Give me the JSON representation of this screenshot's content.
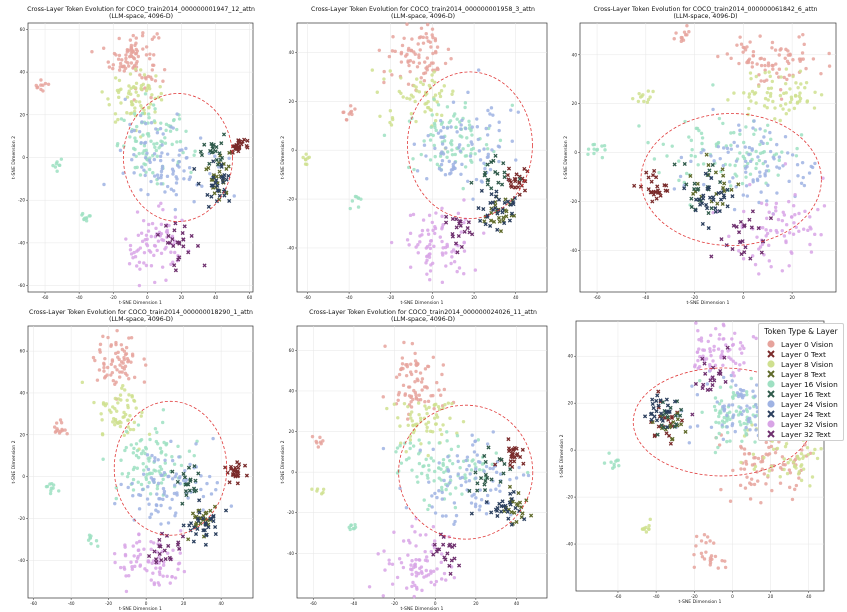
{
  "colors": {
    "layer0_vision": "#e6a39c",
    "layer0_text": "#7a2b2b",
    "layer8_vision": "#cfe08f",
    "layer8_text": "#5f6a2a",
    "layer16_vision": "#9ee0c2",
    "layer16_text": "#2f5a4a",
    "layer24_vision": "#9fb3e3",
    "layer24_text": "#2b3f5e",
    "layer32_vision": "#d8a4e6",
    "layer32_text": "#6e2f6e",
    "ellipse": "#e03a3a"
  },
  "legend": {
    "title": "Token Type & Layer",
    "entries": [
      {
        "label": "Layer 0 Vision",
        "marker": "circle",
        "color": "#e6a39c"
      },
      {
        "label": "Layer 0 Text",
        "marker": "x",
        "color": "#7a2b2b"
      },
      {
        "label": "Layer 8 Vision",
        "marker": "circle",
        "color": "#cfe08f"
      },
      {
        "label": "Layer 8 Text",
        "marker": "x",
        "color": "#5f6a2a"
      },
      {
        "label": "Layer 16 Vision",
        "marker": "circle",
        "color": "#9ee0c2"
      },
      {
        "label": "Layer 16 Text",
        "marker": "x",
        "color": "#2f5a4a"
      },
      {
        "label": "Layer 24 Vision",
        "marker": "circle",
        "color": "#9fb3e3"
      },
      {
        "label": "Layer 24 Text",
        "marker": "x",
        "color": "#2b3f5e"
      },
      {
        "label": "Layer 32 Vision",
        "marker": "circle",
        "color": "#d8a4e6"
      },
      {
        "label": "Layer 32 Text",
        "marker": "x",
        "color": "#6e2f6e"
      }
    ]
  },
  "chart_data": [
    {
      "type": "scatter",
      "title": "Cross-Layer Token Evolution for COCO_train2014_000000001947_12_attn",
      "subtitle": "(LLM-space, 4096-D)",
      "xlabel": "t-SNE Dimension 1",
      "ylabel": "t-SNE Dimension 2",
      "xlim": [
        -70,
        62
      ],
      "ylim": [
        -63,
        63
      ],
      "xticks": [
        -60,
        -40,
        -20,
        0,
        20,
        40,
        60
      ],
      "yticks": [
        -60,
        -40,
        -20,
        0,
        20,
        40,
        60
      ],
      "grid": true,
      "ellipse": {
        "cx": 18,
        "cy": 0,
        "rx": 32,
        "ry": 30
      },
      "clusters": [
        {
          "layer": "layer0_vision",
          "cx": -8,
          "cy": 47,
          "sx": 7,
          "sy": 7,
          "n": 90
        },
        {
          "layer": "layer0_vision",
          "cx": -62,
          "cy": 34,
          "sx": 2,
          "sy": 1.5,
          "n": 10
        },
        {
          "layer": "layer0_text",
          "cx": 52,
          "cy": 5,
          "sx": 2.5,
          "sy": 2.5,
          "n": 25
        },
        {
          "layer": "layer8_vision",
          "cx": -8,
          "cy": 28,
          "sx": 9,
          "sy": 6,
          "n": 70
        },
        {
          "layer": "layer8_text",
          "cx": 43,
          "cy": -8,
          "sx": 4,
          "sy": 6,
          "n": 25
        },
        {
          "layer": "layer16_vision",
          "cx": 5,
          "cy": 6,
          "sx": 11,
          "sy": 8,
          "n": 90
        },
        {
          "layer": "layer16_vision",
          "cx": -53,
          "cy": -4,
          "sx": 1.5,
          "sy": 1.5,
          "n": 8
        },
        {
          "layer": "layer16_vision",
          "cx": -35,
          "cy": -28,
          "sx": 2,
          "sy": 1.5,
          "n": 10
        },
        {
          "layer": "layer16_text",
          "cx": 38,
          "cy": 4,
          "sx": 4,
          "sy": 5,
          "n": 20
        },
        {
          "layer": "layer24_vision",
          "cx": 12,
          "cy": 0,
          "sx": 13,
          "sy": 10,
          "n": 90
        },
        {
          "layer": "layer24_text",
          "cx": 42,
          "cy": -12,
          "sx": 5,
          "sy": 5,
          "n": 30
        },
        {
          "layer": "layer32_vision",
          "cx": 5,
          "cy": -42,
          "sx": 9,
          "sy": 8,
          "n": 80
        },
        {
          "layer": "layer32_text",
          "cx": 16,
          "cy": -38,
          "sx": 6,
          "sy": 6,
          "n": 25
        }
      ]
    },
    {
      "type": "scatter",
      "title": "Cross-Layer Token Evolution for COCO_train2014_000000001958_3_attn",
      "subtitle": "(LLM-space, 4096-D)",
      "xlabel": "t-SNE Dimension 1",
      "ylabel": "t-SNE Dimension 2",
      "xlim": [
        -65,
        55
      ],
      "ylim": [
        -58,
        52
      ],
      "xticks": [
        -60,
        -40,
        -20,
        0,
        20,
        40
      ],
      "yticks": [
        -40,
        -20,
        0,
        20,
        40
      ],
      "grid": true,
      "ellipse": {
        "cx": 18,
        "cy": 2,
        "rx": 30,
        "ry": 30
      },
      "clusters": [
        {
          "layer": "layer0_vision",
          "cx": -6,
          "cy": 39,
          "sx": 8,
          "sy": 6,
          "n": 80
        },
        {
          "layer": "layer0_vision",
          "cx": -41,
          "cy": 15,
          "sx": 2,
          "sy": 2,
          "n": 10
        },
        {
          "layer": "layer0_text",
          "cx": 41,
          "cy": -13,
          "sx": 3,
          "sy": 2.5,
          "n": 25
        },
        {
          "layer": "layer8_vision",
          "cx": -5,
          "cy": 22,
          "sx": 9,
          "sy": 6,
          "n": 60
        },
        {
          "layer": "layer8_vision",
          "cx": -61,
          "cy": -3,
          "sx": 1.5,
          "sy": 1.5,
          "n": 8
        },
        {
          "layer": "layer8_text",
          "cx": 32,
          "cy": -26,
          "sx": 4,
          "sy": 4,
          "n": 25
        },
        {
          "layer": "layer16_vision",
          "cx": 8,
          "cy": 5,
          "sx": 10,
          "sy": 8,
          "n": 90
        },
        {
          "layer": "layer16_vision",
          "cx": -37,
          "cy": -22,
          "sx": 2,
          "sy": 1.5,
          "n": 8
        },
        {
          "layer": "layer16_text",
          "cx": 30,
          "cy": -10,
          "sx": 4,
          "sy": 5,
          "n": 20
        },
        {
          "layer": "layer24_vision",
          "cx": 15,
          "cy": 0,
          "sx": 12,
          "sy": 10,
          "n": 90
        },
        {
          "layer": "layer24_text",
          "cx": 30,
          "cy": -24,
          "sx": 5,
          "sy": 5,
          "n": 30
        },
        {
          "layer": "layer32_vision",
          "cx": 3,
          "cy": -38,
          "sx": 9,
          "sy": 7,
          "n": 80
        },
        {
          "layer": "layer32_text",
          "cx": 13,
          "cy": -33,
          "sx": 4,
          "sy": 4,
          "n": 20
        }
      ]
    },
    {
      "type": "scatter",
      "title": "Cross-Layer Token Evolution for COCO_train2014_000000061842_6_attn",
      "subtitle": "(LLM-space, 4096-D)",
      "xlabel": "t-SNE Dimension 1",
      "ylabel": "t-SNE Dimension 2",
      "xlim": [
        -67,
        38
      ],
      "ylim": [
        -57,
        53
      ],
      "xticks": [
        -60,
        -40,
        -20,
        0,
        20
      ],
      "yticks": [
        -40,
        -20,
        0,
        20,
        40
      ],
      "grid": true,
      "ellipse": {
        "cx": -5,
        "cy": -11,
        "rx": 37,
        "ry": 27
      },
      "clusters": [
        {
          "layer": "layer0_vision",
          "cx": -25,
          "cy": 48,
          "sx": 2,
          "sy": 2,
          "n": 12
        },
        {
          "layer": "layer0_vision",
          "cx": 13,
          "cy": 38,
          "sx": 10,
          "sy": 5,
          "n": 80
        },
        {
          "layer": "layer0_text",
          "cx": -36,
          "cy": -14,
          "sx": 3,
          "sy": 3,
          "n": 25
        },
        {
          "layer": "layer8_vision",
          "cx": -40,
          "cy": 22,
          "sx": 2,
          "sy": 1.5,
          "n": 12
        },
        {
          "layer": "layer8_vision",
          "cx": 15,
          "cy": 24,
          "sx": 10,
          "sy": 5,
          "n": 70
        },
        {
          "layer": "layer8_text",
          "cx": -14,
          "cy": -14,
          "sx": 5,
          "sy": 4,
          "n": 20
        },
        {
          "layer": "layer16_vision",
          "cx": -60,
          "cy": 1,
          "sx": 2.5,
          "sy": 1.5,
          "n": 12
        },
        {
          "layer": "layer16_vision",
          "cx": -5,
          "cy": 0,
          "sx": 14,
          "sy": 8,
          "n": 90
        },
        {
          "layer": "layer16_text",
          "cx": -18,
          "cy": -15,
          "sx": 4,
          "sy": 5,
          "n": 20
        },
        {
          "layer": "layer24_vision",
          "cx": 5,
          "cy": -5,
          "sx": 14,
          "sy": 9,
          "n": 90
        },
        {
          "layer": "layer24_text",
          "cx": -13,
          "cy": -20,
          "sx": 5,
          "sy": 6,
          "n": 30
        },
        {
          "layer": "layer32_vision",
          "cx": 15,
          "cy": -30,
          "sx": 10,
          "sy": 8,
          "n": 80
        },
        {
          "layer": "layer32_text",
          "cx": 0,
          "cy": -33,
          "sx": 6,
          "sy": 5,
          "n": 25
        }
      ]
    },
    {
      "type": "scatter",
      "title": "Cross-Layer Token Evolution for COCO_train2014_000000018290_1_attn",
      "subtitle": "(LLM-space, 4096-D)",
      "xlabel": "t-SNE Dimension 1",
      "ylabel": "t-SNE Dimension 2",
      "xlim": [
        -63,
        57
      ],
      "ylim": [
        -58,
        72
      ],
      "xticks": [
        -60,
        -40,
        -20,
        0,
        20,
        40
      ],
      "yticks": [
        -40,
        -20,
        0,
        20,
        40,
        60
      ],
      "grid": true,
      "ellipse": {
        "cx": 13,
        "cy": 4,
        "rx": 30,
        "ry": 32
      },
      "clusters": [
        {
          "layer": "layer0_vision",
          "cx": -15,
          "cy": 55,
          "sx": 6,
          "sy": 7,
          "n": 70
        },
        {
          "layer": "layer0_vision",
          "cx": -45,
          "cy": 22,
          "sx": 2,
          "sy": 3,
          "n": 14
        },
        {
          "layer": "layer0_text",
          "cx": 48,
          "cy": 2,
          "sx": 2.5,
          "sy": 2.5,
          "n": 25
        },
        {
          "layer": "layer8_vision",
          "cx": -14,
          "cy": 30,
          "sx": 7,
          "sy": 7,
          "n": 60
        },
        {
          "layer": "layer8_text",
          "cx": 30,
          "cy": -18,
          "sx": 4,
          "sy": 5,
          "n": 25
        },
        {
          "layer": "layer16_vision",
          "cx": -50,
          "cy": -5,
          "sx": 2,
          "sy": 2,
          "n": 10
        },
        {
          "layer": "layer16_vision",
          "cx": -30,
          "cy": -30,
          "sx": 2,
          "sy": 1.5,
          "n": 8
        },
        {
          "layer": "layer16_vision",
          "cx": 3,
          "cy": 8,
          "sx": 11,
          "sy": 9,
          "n": 90
        },
        {
          "layer": "layer16_text",
          "cx": 22,
          "cy": -5,
          "sx": 4,
          "sy": 5,
          "n": 20
        },
        {
          "layer": "layer24_vision",
          "cx": 12,
          "cy": -3,
          "sx": 13,
          "sy": 10,
          "n": 90
        },
        {
          "layer": "layer24_text",
          "cx": 30,
          "cy": -23,
          "sx": 5,
          "sy": 5,
          "n": 30
        },
        {
          "layer": "layer32_vision",
          "cx": 0,
          "cy": -42,
          "sx": 9,
          "sy": 7,
          "n": 80
        },
        {
          "layer": "layer32_text",
          "cx": 10,
          "cy": -36,
          "sx": 5,
          "sy": 4,
          "n": 20
        }
      ]
    },
    {
      "type": "scatter",
      "title": "Cross-Layer Token Evolution for COCO_train2014_000000024026_11_attn",
      "subtitle": "(LLM-space, 4096-D)",
      "xlabel": "t-SNE Dimension 1",
      "ylabel": "t-SNE Dimension 2",
      "xlim": [
        -68,
        55
      ],
      "ylim": [
        -62,
        72
      ],
      "xticks": [
        -60,
        -40,
        -20,
        0,
        20,
        40
      ],
      "yticks": [
        -40,
        -20,
        0,
        20,
        40,
        60
      ],
      "grid": true,
      "ellipse": {
        "cx": 15,
        "cy": 0,
        "rx": 33,
        "ry": 33
      },
      "clusters": [
        {
          "layer": "layer0_vision",
          "cx": -10,
          "cy": 45,
          "sx": 7,
          "sy": 9,
          "n": 80
        },
        {
          "layer": "layer0_vision",
          "cx": -57,
          "cy": 14,
          "sx": 1.5,
          "sy": 1.5,
          "n": 8
        },
        {
          "layer": "layer0_text",
          "cx": 38,
          "cy": 9,
          "sx": 3,
          "sy": 3,
          "n": 25
        },
        {
          "layer": "layer8_vision",
          "cx": -5,
          "cy": 25,
          "sx": 7,
          "sy": 6,
          "n": 60
        },
        {
          "layer": "layer8_vision",
          "cx": -58,
          "cy": -8,
          "sx": 1.5,
          "sy": 1.5,
          "n": 6
        },
        {
          "layer": "layer8_text",
          "cx": 38,
          "cy": -17,
          "sx": 3,
          "sy": 5,
          "n": 20
        },
        {
          "layer": "layer16_vision",
          "cx": 5,
          "cy": 3,
          "sx": 12,
          "sy": 8,
          "n": 90
        },
        {
          "layer": "layer16_vision",
          "cx": -40,
          "cy": -27,
          "sx": 1.5,
          "sy": 1.5,
          "n": 8
        },
        {
          "layer": "layer16_text",
          "cx": 28,
          "cy": 0,
          "sx": 5,
          "sy": 6,
          "n": 20
        },
        {
          "layer": "layer24_vision",
          "cx": 15,
          "cy": -3,
          "sx": 13,
          "sy": 10,
          "n": 90
        },
        {
          "layer": "layer24_text",
          "cx": 32,
          "cy": -18,
          "sx": 5,
          "sy": 4,
          "n": 25
        },
        {
          "layer": "layer32_vision",
          "cx": -8,
          "cy": -45,
          "sx": 9,
          "sy": 9,
          "n": 80
        },
        {
          "layer": "layer32_text",
          "cx": 5,
          "cy": -40,
          "sx": 5,
          "sy": 5,
          "n": 20
        }
      ]
    },
    {
      "type": "scatter",
      "title": "",
      "subtitle": "",
      "xlabel": "t-SNE Dimension 1",
      "ylabel": "t-SNE Dimension 2",
      "xlim": [
        -82,
        48
      ],
      "ylim": [
        -60,
        55
      ],
      "xticks": [
        -60,
        -40,
        -20,
        0,
        20,
        40
      ],
      "yticks": [
        -40,
        -20,
        0,
        20,
        40
      ],
      "grid": true,
      "ellipse": {
        "cx": -5,
        "cy": 12,
        "rx": 47,
        "ry": 23
      },
      "clusters": [
        {
          "layer": "layer0_vision",
          "cx": 20,
          "cy": -5,
          "sx": 12,
          "sy": 9,
          "n": 90
        },
        {
          "layer": "layer0_vision",
          "cx": -12,
          "cy": -45,
          "sx": 4,
          "sy": 5,
          "n": 25
        },
        {
          "layer": "layer0_text",
          "cx": -36,
          "cy": 10,
          "sx": 4,
          "sy": 6,
          "n": 20
        },
        {
          "layer": "layer8_vision",
          "cx": 28,
          "cy": 0,
          "sx": 12,
          "sy": 8,
          "n": 70
        },
        {
          "layer": "layer8_vision",
          "cx": -45,
          "cy": -33,
          "sx": 2,
          "sy": 1.5,
          "n": 10
        },
        {
          "layer": "layer8_text",
          "cx": -32,
          "cy": 11,
          "sx": 4,
          "sy": 4,
          "n": 15
        },
        {
          "layer": "layer16_vision",
          "cx": -63,
          "cy": -5,
          "sx": 2,
          "sy": 2,
          "n": 10
        },
        {
          "layer": "layer16_vision",
          "cx": 3,
          "cy": 15,
          "sx": 10,
          "sy": 7,
          "n": 80
        },
        {
          "layer": "layer16_text",
          "cx": -33,
          "cy": 14,
          "sx": 4,
          "sy": 4,
          "n": 15
        },
        {
          "layer": "layer24_vision",
          "cx": 5,
          "cy": 18,
          "sx": 14,
          "sy": 7,
          "n": 80
        },
        {
          "layer": "layer24_text",
          "cx": -38,
          "cy": 16,
          "sx": 4,
          "sy": 3,
          "n": 25
        },
        {
          "layer": "layer32_vision",
          "cx": -7,
          "cy": 42,
          "sx": 8,
          "sy": 6,
          "n": 70
        },
        {
          "layer": "layer32_text",
          "cx": -12,
          "cy": 33,
          "sx": 5,
          "sy": 5,
          "n": 20
        }
      ]
    }
  ]
}
